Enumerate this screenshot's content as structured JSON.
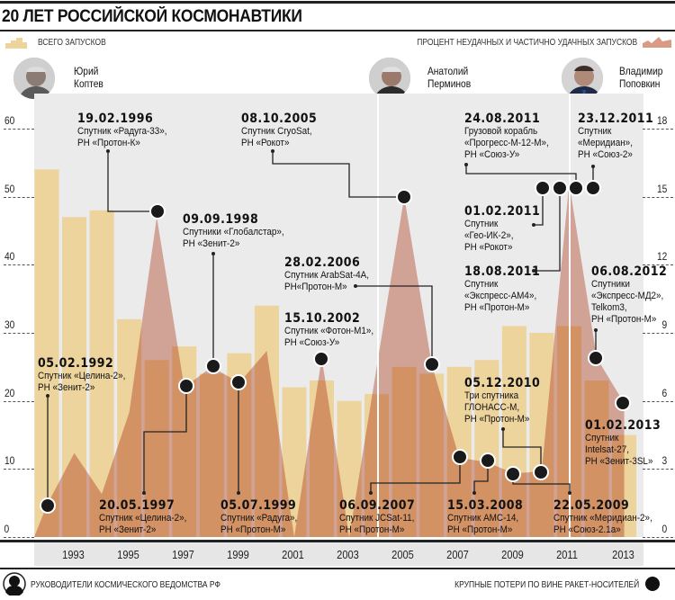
{
  "title": "20 ЛЕТ РОССИЙСКОЙ КОСМОНАВТИКИ",
  "legend": {
    "launches_label": "ВСЕГО ЗАПУСКОВ",
    "failures_label": "ПРОЦЕНТ НЕУДАЧНЫХ И ЧАСТИЧНО УДАЧНЫХ ЗАПУСКОВ",
    "launches_color": "#edd39c",
    "failures_color": "#d99a86"
  },
  "leaders": [
    {
      "name": "Юрий\nКоптев"
    },
    {
      "name": "Анатолий\nПерминов"
    },
    {
      "name": "Владимир\nПоповкин"
    }
  ],
  "footer": {
    "leaders_label": "РУКОВОДИТЕЛИ КОСМИЧЕСКОГО ВЕДОМСТВА РФ",
    "losses_label": "КРУПНЫЕ ПОТЕРИ ПО ВИНЕ РАКЕТ-НОСИТЕЛЕЙ"
  },
  "chart_data": {
    "type": "bar",
    "categories": [
      1992,
      1993,
      1994,
      1995,
      1996,
      1997,
      1998,
      1999,
      2000,
      2001,
      2002,
      2003,
      2004,
      2005,
      2006,
      2007,
      2008,
      2009,
      2010,
      2011,
      2012,
      2013
    ],
    "year_labels": [
      "1993",
      "1995",
      "1997",
      "1999",
      "2001",
      "2003",
      "2005",
      "2007",
      "2009",
      "2011",
      "2013"
    ],
    "series": [
      {
        "name": "ВСЕГО ЗАПУСКОВ",
        "type": "bar",
        "axis": "left",
        "values": [
          54,
          47,
          48,
          32,
          26,
          28,
          24,
          27,
          34,
          22,
          23,
          20,
          21,
          25,
          24,
          25,
          26,
          31,
          30,
          31,
          23,
          15
        ]
      },
      {
        "name": "ПРОЦЕНТ НЕУДАЧНЫХ И ЧАСТИЧНО УДАЧНЫХ ЗАПУСКОВ",
        "type": "area",
        "axis": "right",
        "values": [
          1.4,
          3.7,
          1.9,
          5.5,
          14.1,
          6.6,
          7.5,
          6.8,
          8.2,
          0,
          7.9,
          0,
          7.5,
          15.0,
          7.6,
          3.5,
          3.3,
          2.8,
          2.9,
          15.6,
          7.9,
          5.9
        ]
      }
    ],
    "left_axis": {
      "ticks": [
        "0",
        "10",
        "20",
        "30",
        "40",
        "50",
        "60"
      ],
      "range": [
        0,
        60
      ]
    },
    "right_axis": {
      "ticks": [
        "0",
        "3",
        "6",
        "9",
        "12",
        "15",
        "18"
      ],
      "range": [
        0,
        18
      ]
    },
    "grid": false,
    "legend_placement": "top",
    "annotations": [
      {
        "date": "19.02.1996",
        "text": "Спутник «Радуга-33»,\nРН «Протон-К»"
      },
      {
        "date": "08.10.2005",
        "text": "Спутник CryoSat,\nРН «Рокот»"
      },
      {
        "date": "09.09.1998",
        "text": "Спутники «Глобалстар»,\nРН «Зенит-2»"
      },
      {
        "date": "28.02.2006",
        "text": "Спутник ArabSat-4A,\nРН«Протон-М»"
      },
      {
        "date": "15.10.2002",
        "text": "Спутник «Фотон-М1»,\nРН «Союз-У»"
      },
      {
        "date": "05.02.1992",
        "text": "Спутник «Целина-2»,\nРН «Зенит-2»"
      },
      {
        "date": "20.05.1997",
        "text": "Спутник «Целина-2»,\nРН «Зенит-2»"
      },
      {
        "date": "05.07.1999",
        "text": "Спутник «Радуга»,\nРН «Протон-М»"
      },
      {
        "date": "06.09.2007",
        "text": "Спутник JCSat-11,\nРН «Протон-М»"
      },
      {
        "date": "15.03.2008",
        "text": "Спутник AMC-14,\nРН «Протон-М»"
      },
      {
        "date": "22.05.2009",
        "text": "Спутник «Меридиан-2»,\nРН «Союз-2.1а»"
      },
      {
        "date": "05.12.2010",
        "text": "Три спутника\nГЛОНАСС-М,\nРН «Протон-М»"
      },
      {
        "date": "24.08.2011",
        "text": "Грузовой корабль\n«Прогресс-М-12-М»,\nРН «Союз-У»"
      },
      {
        "date": "23.12.2011",
        "text": "Спутник\n«Меридиан»,\nРН «Союз-2»"
      },
      {
        "date": "01.02.2011",
        "text": "Спутник\n«Гео-ИК-2»,\nРН «Рокот»"
      },
      {
        "date": "18.08.2011",
        "text": "Спутник\n«Экспресс-АМ4»,\nРН «Протон-М»"
      },
      {
        "date": "06.08.2012",
        "text": "Спутники\n«Экспресс-МД2»,\nTelkom3,\nРН «Протон-М»"
      },
      {
        "date": "01.02.2013",
        "text": "Спутник\nIntelsat-27,\nРН «Зенит-3SL»"
      }
    ]
  }
}
